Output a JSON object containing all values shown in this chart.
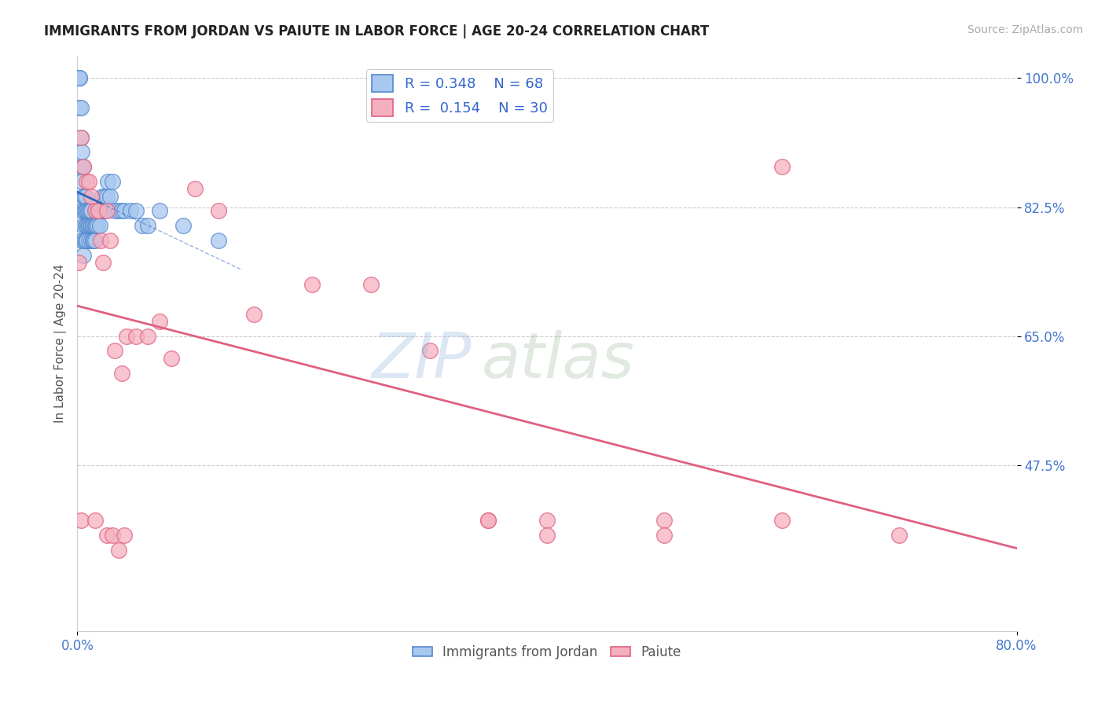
{
  "title": "IMMIGRANTS FROM JORDAN VS PAIUTE IN LABOR FORCE | AGE 20-24 CORRELATION CHART",
  "source": "Source: ZipAtlas.com",
  "ylabel": "In Labor Force | Age 20-24",
  "x_min": 0.0,
  "x_max": 0.8,
  "y_min": 0.25,
  "y_max": 1.03,
  "x_tick_labels": [
    "0.0%",
    "80.0%"
  ],
  "y_tick_positions": [
    0.475,
    0.65,
    0.825,
    1.0
  ],
  "y_tick_labels": [
    "47.5%",
    "65.0%",
    "82.5%",
    "100.0%"
  ],
  "jordan_R": 0.348,
  "jordan_N": 68,
  "paiute_R": 0.154,
  "paiute_N": 30,
  "jordan_color": "#A8C8F0",
  "paiute_color": "#F5B0C0",
  "jordan_edge_color": "#5588CC",
  "paiute_edge_color": "#E06080",
  "jordan_line_color": "#3366BB",
  "paiute_line_color": "#E06080",
  "legend_jordan_label": "Immigrants from Jordan",
  "legend_paiute_label": "Paiute",
  "jordan_x": [
    0.001,
    0.001,
    0.002,
    0.002,
    0.002,
    0.003,
    0.003,
    0.003,
    0.004,
    0.004,
    0.004,
    0.004,
    0.005,
    0.005,
    0.005,
    0.005,
    0.006,
    0.006,
    0.006,
    0.007,
    0.007,
    0.007,
    0.007,
    0.008,
    0.008,
    0.008,
    0.009,
    0.009,
    0.01,
    0.01,
    0.01,
    0.011,
    0.011,
    0.012,
    0.012,
    0.012,
    0.013,
    0.013,
    0.014,
    0.014,
    0.015,
    0.015,
    0.016,
    0.016,
    0.017,
    0.017,
    0.018,
    0.019,
    0.02,
    0.021,
    0.022,
    0.023,
    0.024,
    0.025,
    0.026,
    0.028,
    0.03,
    0.032,
    0.035,
    0.038,
    0.04,
    0.045,
    0.05,
    0.055,
    0.06,
    0.07,
    0.09,
    0.12
  ],
  "jordan_y": [
    1.0,
    1.0,
    1.0,
    1.0,
    0.96,
    0.96,
    0.92,
    0.88,
    0.9,
    0.86,
    0.82,
    0.78,
    0.88,
    0.84,
    0.8,
    0.76,
    0.84,
    0.82,
    0.78,
    0.84,
    0.82,
    0.8,
    0.78,
    0.82,
    0.8,
    0.78,
    0.82,
    0.8,
    0.82,
    0.8,
    0.78,
    0.82,
    0.8,
    0.82,
    0.8,
    0.78,
    0.8,
    0.78,
    0.8,
    0.78,
    0.8,
    0.78,
    0.82,
    0.8,
    0.82,
    0.8,
    0.82,
    0.8,
    0.82,
    0.84,
    0.82,
    0.84,
    0.82,
    0.84,
    0.86,
    0.84,
    0.86,
    0.82,
    0.82,
    0.82,
    0.82,
    0.82,
    0.82,
    0.8,
    0.8,
    0.82,
    0.8,
    0.78
  ],
  "paiute_x": [
    0.001,
    0.003,
    0.005,
    0.008,
    0.01,
    0.012,
    0.015,
    0.018,
    0.02,
    0.022,
    0.025,
    0.028,
    0.032,
    0.038,
    0.042,
    0.05,
    0.06,
    0.07,
    0.08,
    0.1,
    0.12,
    0.15,
    0.2,
    0.25,
    0.3,
    0.35,
    0.4,
    0.5,
    0.6,
    0.7
  ],
  "paiute_y": [
    0.75,
    0.92,
    0.88,
    0.86,
    0.86,
    0.84,
    0.82,
    0.82,
    0.78,
    0.75,
    0.82,
    0.78,
    0.63,
    0.6,
    0.65,
    0.65,
    0.65,
    0.67,
    0.62,
    0.85,
    0.82,
    0.68,
    0.72,
    0.72,
    0.63,
    0.4,
    0.4,
    0.4,
    0.4,
    0.38
  ],
  "paiute_extra_x": [
    0.003,
    0.015,
    0.025,
    0.03,
    0.035,
    0.04,
    0.35,
    0.4,
    0.5,
    0.6
  ],
  "paiute_extra_y": [
    0.4,
    0.4,
    0.38,
    0.38,
    0.36,
    0.38,
    0.4,
    0.38,
    0.38,
    0.88
  ]
}
